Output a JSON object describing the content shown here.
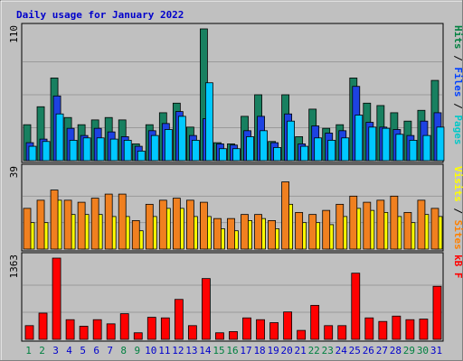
{
  "chart_data": [
    {
      "type": "bar",
      "title": "Daily usage for January 2022",
      "ymax_label": "110",
      "ylim": [
        0,
        110
      ],
      "categories": [
        "1",
        "2",
        "3",
        "4",
        "5",
        "6",
        "7",
        "8",
        "9",
        "10",
        "11",
        "12",
        "13",
        "14",
        "15",
        "16",
        "17",
        "18",
        "19",
        "20",
        "21",
        "22",
        "23",
        "24",
        "25",
        "26",
        "27",
        "28",
        "29",
        "30",
        "31"
      ],
      "legend": [
        {
          "key": "pages",
          "label": "Pages",
          "color": "#00c8c8"
        },
        {
          "key": "files",
          "label": "Files",
          "color": "#0040ff"
        },
        {
          "key": "hits",
          "label": "Hits",
          "color": "#008040"
        }
      ],
      "series": [
        {
          "name": "Hits",
          "color": "#188060",
          "values": [
            30,
            45,
            69,
            36,
            30,
            34,
            36,
            34,
            14,
            30,
            40,
            48,
            28,
            110,
            15,
            14,
            37,
            55,
            16,
            55,
            20,
            43,
            27,
            30,
            69,
            48,
            46,
            40,
            33,
            42,
            67
          ]
        },
        {
          "name": "Files",
          "color": "#1d42e2",
          "values": [
            15,
            18,
            54,
            27,
            21,
            27,
            24,
            20,
            12,
            25,
            31,
            41,
            21,
            35,
            14,
            13,
            25,
            37,
            15,
            39,
            14,
            29,
            23,
            25,
            62,
            32,
            28,
            26,
            21,
            33,
            40
          ]
        },
        {
          "name": "Pages",
          "color": "#00c8ff",
          "values": [
            12,
            16,
            39,
            17,
            19,
            19,
            18,
            17,
            8,
            21,
            26,
            37,
            17,
            65,
            10,
            10,
            20,
            25,
            11,
            33,
            12,
            19,
            17,
            19,
            38,
            28,
            27,
            22,
            17,
            21,
            28
          ]
        }
      ]
    },
    {
      "type": "bar",
      "ymax_label": "39",
      "ylim": [
        0,
        39
      ],
      "legend": [
        {
          "key": "sites",
          "label": "Sites",
          "color": "#ff8000"
        },
        {
          "key": "visits",
          "label": "Visits",
          "color": "#ffff00"
        }
      ],
      "series": [
        {
          "name": "Visits",
          "color": "#ffff00",
          "values": [
            13,
            13,
            24,
            17,
            17,
            17,
            16,
            16,
            9,
            16,
            20,
            20,
            16,
            16,
            10,
            9,
            14,
            15,
            10,
            22,
            13,
            13,
            12,
            16,
            20,
            19,
            18,
            16,
            13,
            17,
            16
          ]
        },
        {
          "name": "Sites",
          "color": "#f08020",
          "values": [
            20,
            24,
            29,
            24,
            23,
            25,
            27,
            27,
            14,
            22,
            24,
            25,
            24,
            23,
            15,
            15,
            17,
            17,
            14,
            33,
            18,
            17,
            19,
            22,
            26,
            23,
            24,
            26,
            18,
            24,
            20
          ]
        }
      ]
    },
    {
      "type": "bar",
      "ymax_label": "1363",
      "ylim": [
        0,
        1363
      ],
      "legend": [
        {
          "key": "kbf",
          "label": "kB F",
          "color": "#ff0000"
        }
      ],
      "series": [
        {
          "name": "kB F",
          "color": "#ff0000",
          "values": [
            230,
            440,
            1363,
            330,
            220,
            330,
            260,
            430,
            110,
            370,
            360,
            670,
            230,
            1020,
            110,
            130,
            360,
            330,
            280,
            460,
            150,
            570,
            230,
            230,
            1110,
            360,
            300,
            390,
            330,
            340,
            890
          ]
        }
      ]
    }
  ]
}
